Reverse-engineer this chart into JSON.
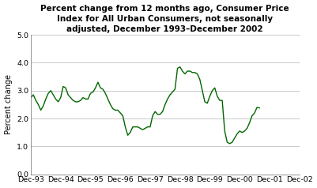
{
  "title": "Percent change from 12 months ago, Consumer Price\nIndex for All Urban Consumers, not seasonally\nadjusted, December 1993–December 2002",
  "ylabel": "Percent change",
  "line_color": "#006600",
  "background_color": "#ffffff",
  "ylim": [
    0.0,
    5.0
  ],
  "yticks": [
    0.0,
    1.0,
    2.0,
    3.0,
    4.0,
    5.0
  ],
  "xtick_labels": [
    "Dec-93",
    "Dec-94",
    "Dec-95",
    "Dec-96",
    "Dec-97",
    "Dec-98",
    "Dec-99",
    "Dec-00",
    "Dec-01",
    "Dec-02"
  ],
  "title_fontsize": 7.5,
  "ylabel_fontsize": 7.0,
  "tick_fontsize": 6.8,
  "values": [
    2.75,
    2.85,
    2.65,
    2.5,
    2.3,
    2.45,
    2.7,
    2.9,
    3.0,
    2.85,
    2.7,
    2.6,
    2.75,
    3.15,
    3.1,
    2.85,
    2.75,
    2.65,
    2.6,
    2.6,
    2.65,
    2.75,
    2.7,
    2.7,
    2.9,
    2.95,
    3.1,
    3.3,
    3.1,
    3.05,
    2.9,
    2.7,
    2.5,
    2.35,
    2.3,
    2.3,
    2.2,
    2.1,
    1.7,
    1.4,
    1.5,
    1.7,
    1.7,
    1.7,
    1.65,
    1.6,
    1.65,
    1.7,
    1.7,
    2.1,
    2.25,
    2.15,
    2.15,
    2.25,
    2.5,
    2.7,
    2.85,
    2.95,
    3.05,
    3.8,
    3.85,
    3.7,
    3.6,
    3.7,
    3.7,
    3.65,
    3.65,
    3.6,
    3.4,
    3.0,
    2.6,
    2.55,
    2.8,
    3.0,
    3.1,
    2.8,
    2.65,
    2.65,
    1.55,
    1.15,
    1.1,
    1.15,
    1.3,
    1.45,
    1.55,
    1.5,
    1.55,
    1.65,
    1.85,
    2.1,
    2.2,
    2.4,
    2.38
  ]
}
